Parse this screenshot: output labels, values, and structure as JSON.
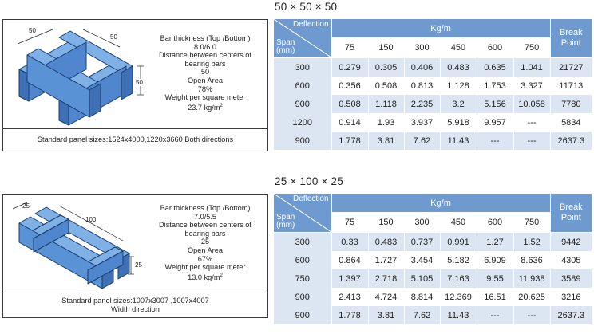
{
  "panels": [
    {
      "diagram": {
        "dim_top_left": "50",
        "dim_top_right": "50",
        "dim_side": "50"
      },
      "specs": {
        "bar_thickness_label": "Bar thickness (Top /Bottom)",
        "bar_thickness_value": "8.0/6.0",
        "distance_label_1": "Distance between centers of",
        "distance_label_2": "bearing bars",
        "distance_value": "50",
        "open_area_label": "Open Area",
        "open_area_value": "78%",
        "weight_label": "Weight per square meter",
        "weight_value": "23.7 kg/m",
        "weight_sup": "2"
      },
      "standard_lines": [
        "Standard panel sizes:1524x4000,1220x3660 Both directions"
      ],
      "table": {
        "title": "50 × 50 × 50",
        "deflection_label": "Deflection",
        "span_label_1": "Span",
        "span_label_2": "(mm)",
        "kgm_label": "Kg/m",
        "break_label_1": "Break",
        "break_label_2": "Point",
        "columns": [
          "75",
          "150",
          "300",
          "450",
          "600",
          "750"
        ],
        "rows": [
          {
            "span": "300",
            "values": [
              "0.279",
              "0.305",
              "0.406",
              "0.483",
              "0.635",
              "1.041"
            ],
            "break": "21727"
          },
          {
            "span": "600",
            "values": [
              "0.356",
              "0.508",
              "0.813",
              "1.128",
              "1.753",
              "3.327"
            ],
            "break": "11713"
          },
          {
            "span": "900",
            "values": [
              "0.508",
              "1.118",
              "2.235",
              "3.2",
              "5.156",
              "10.058"
            ],
            "break": "7780"
          },
          {
            "span": "1200",
            "values": [
              "0.914",
              "1.93",
              "3.937",
              "5.918",
              "9.957",
              "---"
            ],
            "break": "5834"
          },
          {
            "span": "900",
            "values": [
              "1.778",
              "3.81",
              "7.62",
              "11.43",
              "---",
              "---"
            ],
            "break": "2637.3"
          }
        ]
      }
    },
    {
      "diagram": {
        "dim_top_left": "25",
        "dim_top_right": "100",
        "dim_side": "25"
      },
      "specs": {
        "bar_thickness_label": "Bar thickness (Top /Bottom)",
        "bar_thickness_value": "7.0/5.5",
        "distance_label_1": "Distance between centers of",
        "distance_label_2": "bearing bars",
        "distance_value": "25",
        "open_area_label": "Open Area",
        "open_area_value": "67%",
        "weight_label": "Weight per square meter",
        "weight_value": "13.0 kg/m",
        "weight_sup": "2"
      },
      "standard_lines": [
        "Standard panel sizes:1007x3007 ,1007x4007",
        "Width direction"
      ],
      "table": {
        "title": "25 × 100 × 25",
        "deflection_label": "Deflection",
        "span_label_1": "Span",
        "span_label_2": "(mm)",
        "kgm_label": "Kg/m",
        "break_label_1": "Break",
        "break_label_2": "Point",
        "columns": [
          "75",
          "150",
          "300",
          "450",
          "600",
          "750"
        ],
        "rows": [
          {
            "span": "300",
            "values": [
              "0.33",
              "0.483",
              "0.737",
              "0.991",
              "1.27",
              "1.52"
            ],
            "break": "9442"
          },
          {
            "span": "600",
            "values": [
              "0.864",
              "1.727",
              "3.454",
              "5.182",
              "6.909",
              "8.636"
            ],
            "break": "4305"
          },
          {
            "span": "750",
            "values": [
              "1.397",
              "2.718",
              "5.105",
              "7.163",
              "9.55",
              "11.938"
            ],
            "break": "3589"
          },
          {
            "span": "900",
            "values": [
              "2.413",
              "4.724",
              "8.814",
              "12.369",
              "16.51",
              "20.625"
            ],
            "break": "3216"
          },
          {
            "span": "900",
            "values": [
              "1.778",
              "3.81",
              "7.62",
              "11.43",
              "---",
              "---"
            ],
            "break": "2637.3"
          }
        ]
      }
    }
  ],
  "colors": {
    "header_blue": "#6f9ad0",
    "row_light_blue": "#dce6f3",
    "grating_blue": "#4f86cd"
  }
}
